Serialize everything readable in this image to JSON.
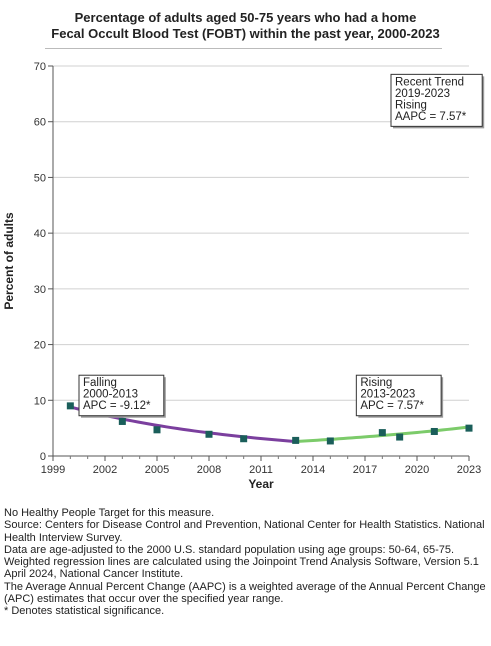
{
  "chart_data": {
    "type": "line",
    "title_line1": "Percentage of adults aged 50-75 years who had a home",
    "title_line2": "Fecal Occult Blood Test (FOBT) within the past year, 2000-2023",
    "xlabel": "Year",
    "ylabel": "Percent of adults",
    "xlim": [
      1999,
      2023
    ],
    "ylim": [
      0,
      70
    ],
    "x_ticks": [
      1999,
      2002,
      2005,
      2008,
      2011,
      2014,
      2017,
      2020,
      2023
    ],
    "y_ticks": [
      0,
      10,
      20,
      30,
      40,
      50,
      60,
      70
    ],
    "points": [
      {
        "x": 2000,
        "y": 9.0
      },
      {
        "x": 2003,
        "y": 6.2
      },
      {
        "x": 2005,
        "y": 4.7
      },
      {
        "x": 2008,
        "y": 3.9
      },
      {
        "x": 2010,
        "y": 3.1
      },
      {
        "x": 2013,
        "y": 2.8
      },
      {
        "x": 2015,
        "y": 2.7
      },
      {
        "x": 2018,
        "y": 4.2
      },
      {
        "x": 2019,
        "y": 3.4
      },
      {
        "x": 2021,
        "y": 4.4
      },
      {
        "x": 2023,
        "y": 5.0
      }
    ],
    "trends": [
      {
        "color": "#7b3f9e",
        "start": 2000,
        "end": 2013,
        "start_value": 8.8,
        "end_value": 2.6,
        "apc": -9.12
      },
      {
        "color": "#7ccb6a",
        "start": 2013,
        "end": 2023,
        "start_value": 2.6,
        "end_value": 5.2,
        "apc": 7.57
      }
    ],
    "point_color": "#1a5e5a",
    "annotations": [
      {
        "lines": [
          "Falling",
          "2000-2013",
          "APC = -9.12*"
        ],
        "anchor_x": 2000.5,
        "anchor_y": 14.5
      },
      {
        "lines": [
          "Rising",
          "2013-2023",
          "APC =  7.57*"
        ],
        "anchor_x": 2016.5,
        "anchor_y": 14.5
      },
      {
        "lines": [
          "Recent Trend",
          "2019-2023",
          "Rising",
          "AAPC =  7.57*"
        ],
        "anchor_x": 2018.5,
        "anchor_y": 68.5
      }
    ]
  },
  "notes": [
    "No Healthy People Target for this measure.",
    "Source: Centers for Disease Control and Prevention, National Center for Health Statistics. National Health Interview Survey.",
    "Data are age-adjusted to the 2000 U.S. standard population using age groups: 50-64, 65-75.",
    "Weighted regression lines are calculated using the Joinpoint Trend Analysis Software, Version 5.1 April 2024, National Cancer Institute.",
    "The Average Annual Percent Change (AAPC) is a weighted average of the Annual Percent Change (APC) estimates that occur over the specified year range.",
    "* Denotes statistical significance."
  ]
}
